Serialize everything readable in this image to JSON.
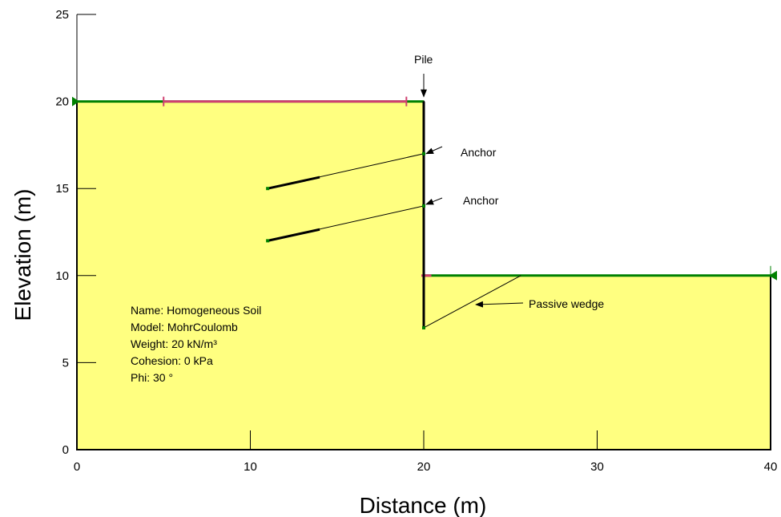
{
  "chart_data": {
    "type": "diagram",
    "xlabel": "Distance (m)",
    "ylabel": "Elevation (m)",
    "xlim": [
      0,
      40
    ],
    "ylim": [
      0,
      25
    ],
    "x_ticks": [
      0,
      10,
      20,
      30,
      40
    ],
    "y_ticks": [
      0,
      5,
      10,
      15,
      20,
      25
    ],
    "x_tick_labels": [
      "0",
      "10",
      "20",
      "30",
      "40"
    ],
    "y_tick_labels": [
      "0",
      "5",
      "10",
      "15",
      "20",
      "25"
    ],
    "soil_region": [
      [
        0,
        0
      ],
      [
        0,
        20
      ],
      [
        20,
        20
      ],
      [
        20,
        10
      ],
      [
        40,
        10
      ],
      [
        40,
        0
      ]
    ],
    "soil_fill_color": "#FFFF80",
    "ground_line_color": "#008000",
    "surcharge_color": "#D04070",
    "surcharge_segments": [
      {
        "x_start": 5,
        "x_end": 19,
        "y": 20
      },
      {
        "x_start": 20,
        "x_end": 20.3,
        "y": 10
      }
    ],
    "pile": {
      "x": 20,
      "y_top": 20,
      "y_bottom": 7
    },
    "anchors": [
      {
        "head": [
          20,
          17
        ],
        "end": [
          11,
          15
        ],
        "grout_end": [
          14,
          15.65
        ]
      },
      {
        "head": [
          20,
          14
        ],
        "end": [
          11,
          12
        ],
        "grout_end": [
          14,
          12.65
        ]
      }
    ],
    "passive_wedge": {
      "from": [
        20,
        7
      ],
      "to": [
        25.6,
        10
      ]
    },
    "annotations": {
      "pile": "Pile",
      "anchor_1": "Anchor",
      "anchor_2": "Anchor",
      "passive_wedge": "Passive wedge"
    },
    "soil_info": [
      "Name: Homogeneous Soil",
      "Model: MohrCoulomb",
      "Weight: 20 kN/m³",
      "Cohesion: 0 kPa",
      "Phi: 30 °"
    ]
  }
}
